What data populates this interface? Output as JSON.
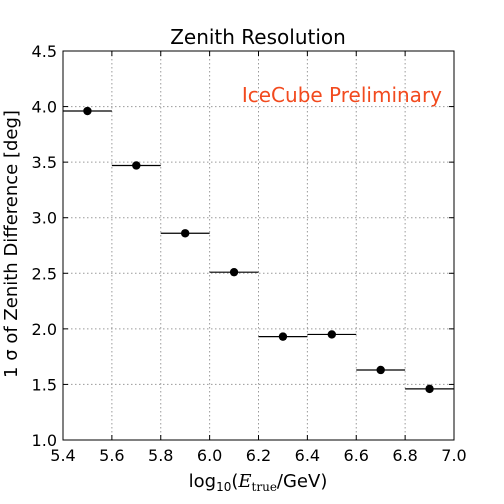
{
  "chart_data": {
    "type": "scatter",
    "title": "Zenith Resolution",
    "xlabel": {
      "prefix": "log",
      "sub": "10",
      "open": "(",
      "var": "E",
      "var_sub": "true",
      "rest": "/GeV)"
    },
    "ylabel": "1 σ of Zenith Difference [deg]",
    "xlim": [
      5.4,
      7.0
    ],
    "ylim": [
      1.0,
      4.5
    ],
    "xticks": [
      "5.4",
      "5.6",
      "5.8",
      "6.0",
      "6.2",
      "6.4",
      "6.6",
      "6.8",
      "7.0"
    ],
    "yticks": [
      "1.0",
      "1.5",
      "2.0",
      "2.5",
      "3.0",
      "3.5",
      "4.0",
      "4.5"
    ],
    "grid": true,
    "annotation": {
      "text": "IceCube Preliminary",
      "color": "#f24a1e"
    },
    "points": [
      {
        "x": 5.5,
        "y": 3.96,
        "xerr": 0.1
      },
      {
        "x": 5.7,
        "y": 3.47,
        "xerr": 0.1
      },
      {
        "x": 5.9,
        "y": 2.86,
        "xerr": 0.1
      },
      {
        "x": 6.1,
        "y": 2.51,
        "xerr": 0.1
      },
      {
        "x": 6.3,
        "y": 1.93,
        "xerr": 0.1
      },
      {
        "x": 6.5,
        "y": 1.95,
        "xerr": 0.1
      },
      {
        "x": 6.7,
        "y": 1.63,
        "xerr": 0.1
      },
      {
        "x": 6.9,
        "y": 1.46,
        "xerr": 0.1
      }
    ]
  }
}
